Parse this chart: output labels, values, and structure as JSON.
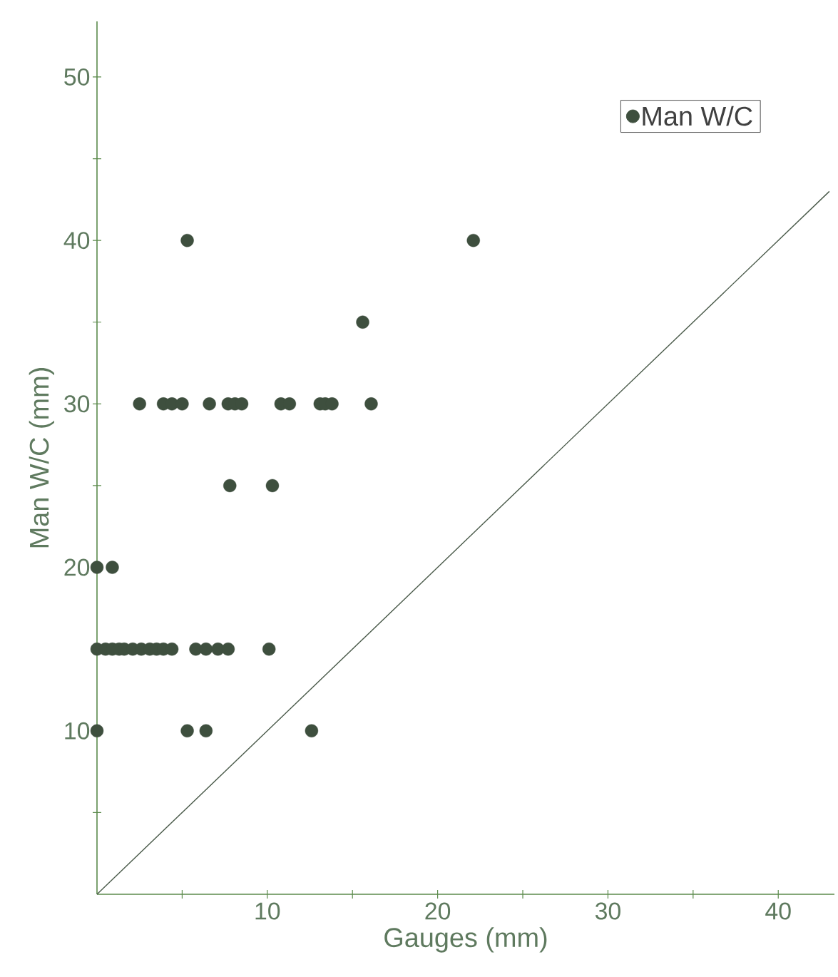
{
  "chart_data": {
    "type": "scatter",
    "xlabel": "Gauges (mm)",
    "ylabel": "Man W/C (mm)",
    "xlim": [
      0,
      43.3
    ],
    "ylim": [
      0,
      53.4
    ],
    "xticks": [
      {
        "value": 5,
        "label": null
      },
      10,
      {
        "value": 15,
        "label": null
      },
      20,
      {
        "value": 25,
        "label": null
      },
      30,
      {
        "value": 35,
        "label": null
      },
      40
    ],
    "yticks": [
      {
        "value": 5,
        "label": null
      },
      10,
      {
        "value": 15,
        "label": null
      },
      20,
      {
        "value": 25,
        "label": null
      },
      30,
      {
        "value": 35,
        "label": null
      },
      40,
      {
        "value": 45,
        "label": null
      },
      50
    ],
    "grid": false,
    "legend": "top right",
    "series": [
      {
        "name": "Man W/C",
        "marker": "circle",
        "color": "#3e4f3e",
        "x": [
          5.3,
          22.1,
          15.6,
          2.5,
          3.9,
          4.4,
          5.0,
          6.6,
          7.7,
          8.1,
          8.5,
          10.8,
          11.3,
          13.1,
          13.4,
          13.8,
          16.1,
          7.8,
          10.3,
          0,
          0.9,
          0,
          0.5,
          0.9,
          1.3,
          1.6,
          2.1,
          2.6,
          3.1,
          3.5,
          3.9,
          4.4,
          5.8,
          6.4,
          7.1,
          7.7,
          10.1,
          0,
          5.3,
          6.4,
          12.6
        ],
        "values": [
          40,
          40,
          35,
          30,
          30,
          30,
          30,
          30,
          30,
          30,
          30,
          30,
          30,
          30,
          30,
          30,
          30,
          25,
          25,
          20,
          20,
          15,
          15,
          15,
          15,
          15,
          15,
          15,
          15,
          15,
          15,
          15,
          15,
          15,
          15,
          15,
          15,
          10,
          10,
          10,
          10
        ]
      },
      {
        "type": "line",
        "color": "#4a5a4a",
        "x": [
          0,
          43
        ],
        "values": [
          0,
          43
        ]
      }
    ]
  }
}
